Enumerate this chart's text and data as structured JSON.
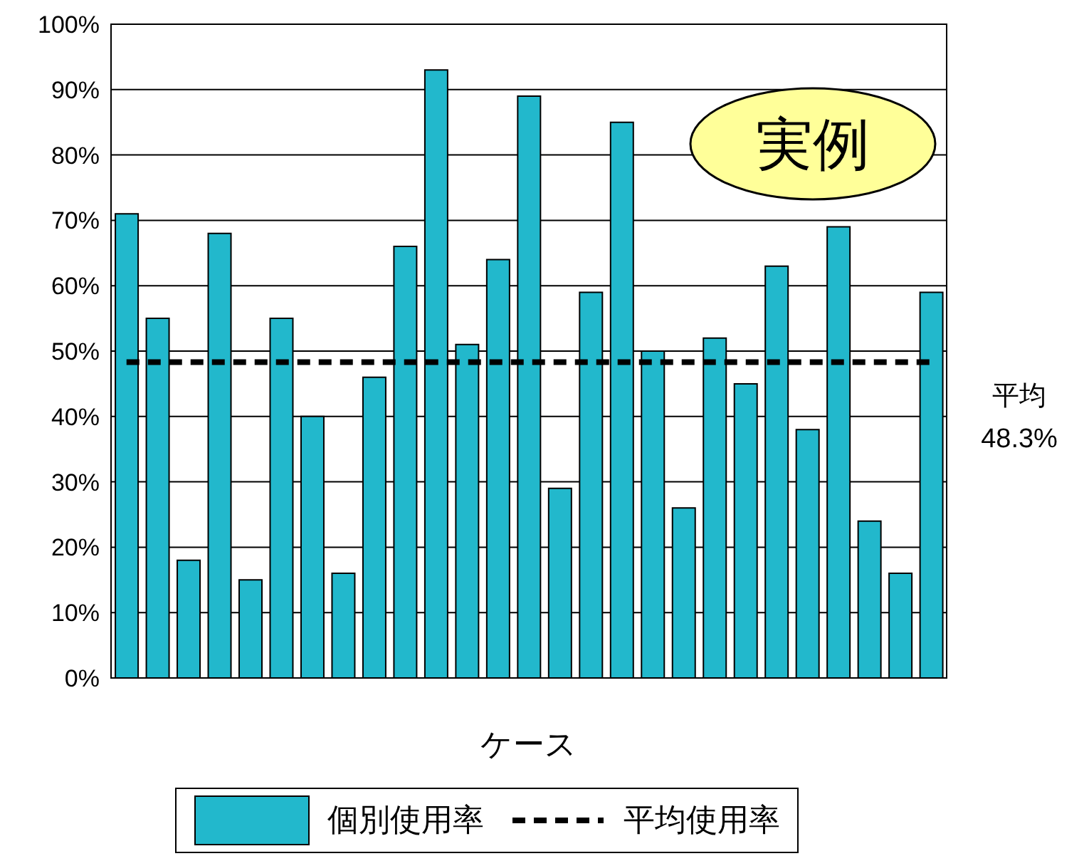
{
  "chart_data": {
    "type": "bar",
    "xlabel": "ケース",
    "categories": [
      null,
      null,
      null,
      null,
      null,
      null,
      null,
      null,
      null,
      null,
      null,
      null,
      null,
      null,
      null,
      null,
      null,
      null,
      null,
      null,
      null,
      null,
      null,
      null,
      null,
      null,
      null
    ],
    "series": [
      {
        "name": "個別使用率",
        "color": "#22b8cc",
        "values": [
          71,
          55,
          18,
          68,
          15,
          55,
          40,
          16,
          46,
          66,
          93,
          51,
          64,
          89,
          29,
          59,
          85,
          50,
          26,
          52,
          45,
          63,
          38,
          69,
          24,
          16,
          59
        ]
      },
      {
        "name": "平均使用率",
        "type": "line",
        "color": "#000000",
        "line_style": "dashed",
        "marker": "none",
        "values": [
          48.3,
          48.3,
          48.3,
          48.3,
          48.3,
          48.3,
          48.3,
          48.3,
          48.3,
          48.3,
          48.3,
          48.3,
          48.3,
          48.3,
          48.3,
          48.3,
          48.3,
          48.3,
          48.3,
          48.3,
          48.3,
          48.3,
          48.3,
          48.3,
          48.3,
          48.3,
          48.3
        ]
      }
    ],
    "ylim": [
      0,
      100
    ],
    "yticks": [
      {
        "value": 0,
        "label": "0%"
      },
      {
        "value": 10,
        "label": "10%"
      },
      {
        "value": 20,
        "label": "20%"
      },
      {
        "value": 30,
        "label": "30%"
      },
      {
        "value": 40,
        "label": "40%"
      },
      {
        "value": 50,
        "label": "50%"
      },
      {
        "value": 60,
        "label": "60%"
      },
      {
        "value": 70,
        "label": "70%"
      },
      {
        "value": 80,
        "label": "80%"
      },
      {
        "value": 90,
        "label": "90%"
      },
      {
        "value": 100,
        "label": "100%"
      }
    ],
    "grid": "y",
    "legend": "bottom",
    "annotations": [
      "実例",
      "平均 48.3%"
    ]
  }
}
